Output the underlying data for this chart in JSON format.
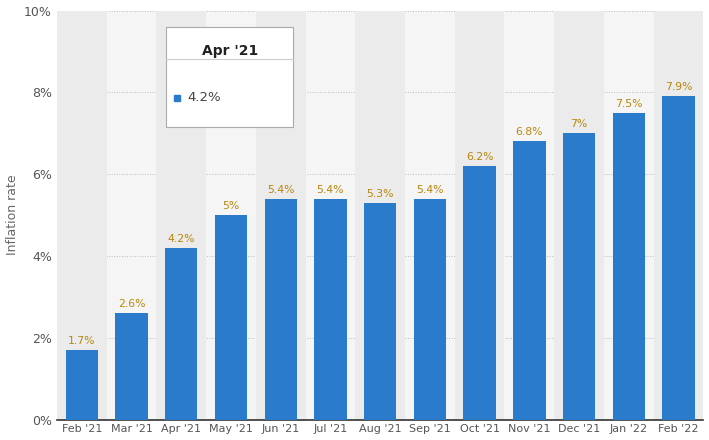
{
  "categories": [
    "Feb '21",
    "Mar '21",
    "Apr '21",
    "May '21",
    "Jun '21",
    "Jul '21",
    "Aug '21",
    "Sep '21",
    "Oct '21",
    "Nov '21",
    "Dec '21",
    "Jan '22",
    "Feb '22"
  ],
  "values": [
    1.7,
    2.6,
    4.2,
    5.0,
    5.4,
    5.4,
    5.3,
    5.4,
    6.2,
    6.8,
    7.0,
    7.5,
    7.9
  ],
  "bar_color": "#2b7bcd",
  "ylabel": "Inflation rate",
  "ylim": [
    0,
    10
  ],
  "yticks": [
    0,
    2,
    4,
    6,
    8,
    10
  ],
  "ytick_labels": [
    "0%",
    "2%",
    "4%",
    "6%",
    "8%",
    "10%"
  ],
  "value_labels": [
    "1.7%",
    "2.6%",
    "4.2%",
    "5%",
    "5.4%",
    "5.4%",
    "5.3%",
    "5.4%",
    "6.2%",
    "6.8%",
    "7%",
    "7.5%",
    "7.9%"
  ],
  "label_color": "#b8860b",
  "grid_color": "#bbbbbb",
  "background_color": "#ffffff",
  "plot_bg_color": "#f5f5f5",
  "column_highlight_color": "#ebebeb",
  "tooltip_title": "Apr '21",
  "tooltip_value": "4.2%",
  "tooltip_dot_color": "#2b7bcd",
  "bar_width": 0.65
}
